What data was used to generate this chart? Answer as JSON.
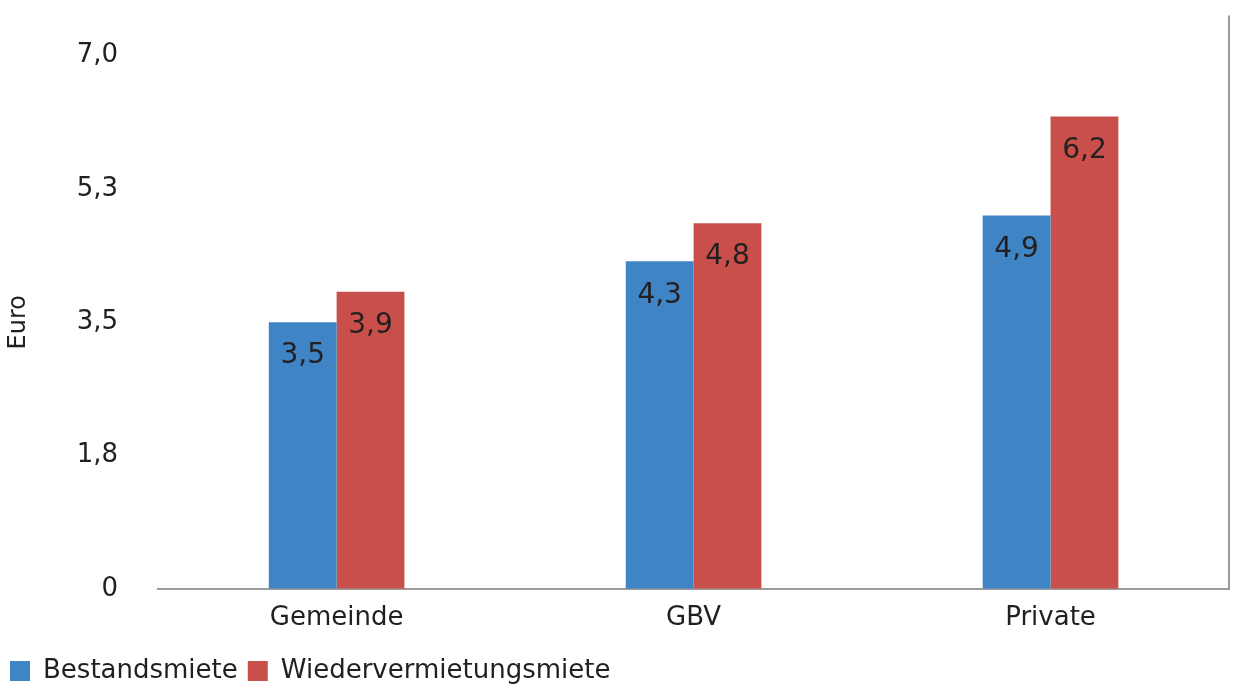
{
  "chart_data": {
    "type": "bar",
    "ylabel": "Euro",
    "categories": [
      "Gemeinde",
      "GBV",
      "Private"
    ],
    "series": [
      {
        "name": "Bestandsmiete",
        "color": "#3f84c4",
        "values": [
          3.5,
          4.3,
          4.9
        ],
        "value_labels": [
          "3,5",
          "4,3",
          "4,9"
        ]
      },
      {
        "name": "Wiedervermietungsmiete",
        "color": "#c9504a",
        "values": [
          3.9,
          4.8,
          6.2
        ],
        "value_labels": [
          "3,9",
          "4,8",
          "6,2"
        ]
      }
    ],
    "ylim": [
      0,
      7
    ],
    "yticks": [
      0,
      {
        "value": 1.75,
        "label": "1,8"
      },
      {
        "value": 3.5,
        "label": "3,5"
      },
      {
        "value": 5.25,
        "label": "5,3"
      },
      {
        "value": 7,
        "label": "7,0"
      }
    ],
    "grid": false,
    "legend": "bottom left"
  }
}
